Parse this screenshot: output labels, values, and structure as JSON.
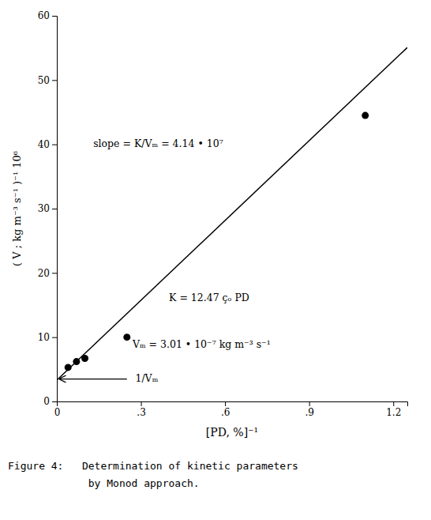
{
  "chart_data": {
    "type": "scatter",
    "x_label": "[PD, %]⁻¹",
    "y_label": "( V ; kg m⁻³ s⁻¹ )⁻¹  10⁶",
    "series": [
      {
        "type": "line",
        "x": [
          0.0,
          1.25
        ],
        "values": [
          3.32,
          55.07
        ],
        "color": "#000000"
      },
      {
        "type": "scatter",
        "x": [
          0.04,
          0.07,
          0.1,
          0.25,
          1.1
        ],
        "values": [
          5.3,
          6.2,
          6.7,
          10.0,
          44.5
        ],
        "color": "#000000"
      }
    ],
    "xlim": [
      0.0,
      1.25
    ],
    "ylim": [
      0,
      60
    ],
    "xticks": [
      0,
      {
        "value": 0.3,
        "label": ".3"
      },
      {
        "value": 0.6,
        "label": ".6"
      },
      {
        "value": 0.9,
        "label": ".9"
      },
      1.2
    ],
    "yticks": [
      0,
      10,
      20,
      30,
      40,
      50,
      60
    ],
    "grid": false,
    "annotations": [
      {
        "text": "slope = K/Vₘ = 4.14 • 10⁷",
        "x": 0.13,
        "y": 40.0
      },
      {
        "text": "K = 12.47 çₒ PD",
        "x": 0.4,
        "y": 16.0
      },
      {
        "text": "Vₘ = 3.01 • 10⁻⁷ kg  m⁻³ s⁻¹",
        "x": 0.27,
        "y": 8.8
      },
      {
        "text": "1/Vₘ",
        "x": 0.28,
        "y": 3.5,
        "arrow_x": [
          0.25,
          0.01
        ],
        "arrow_y": [
          3.5,
          3.5
        ]
      }
    ],
    "caption": [
      "Figure 4:   Determination of kinetic parameters",
      "             by Monod approach."
    ]
  }
}
